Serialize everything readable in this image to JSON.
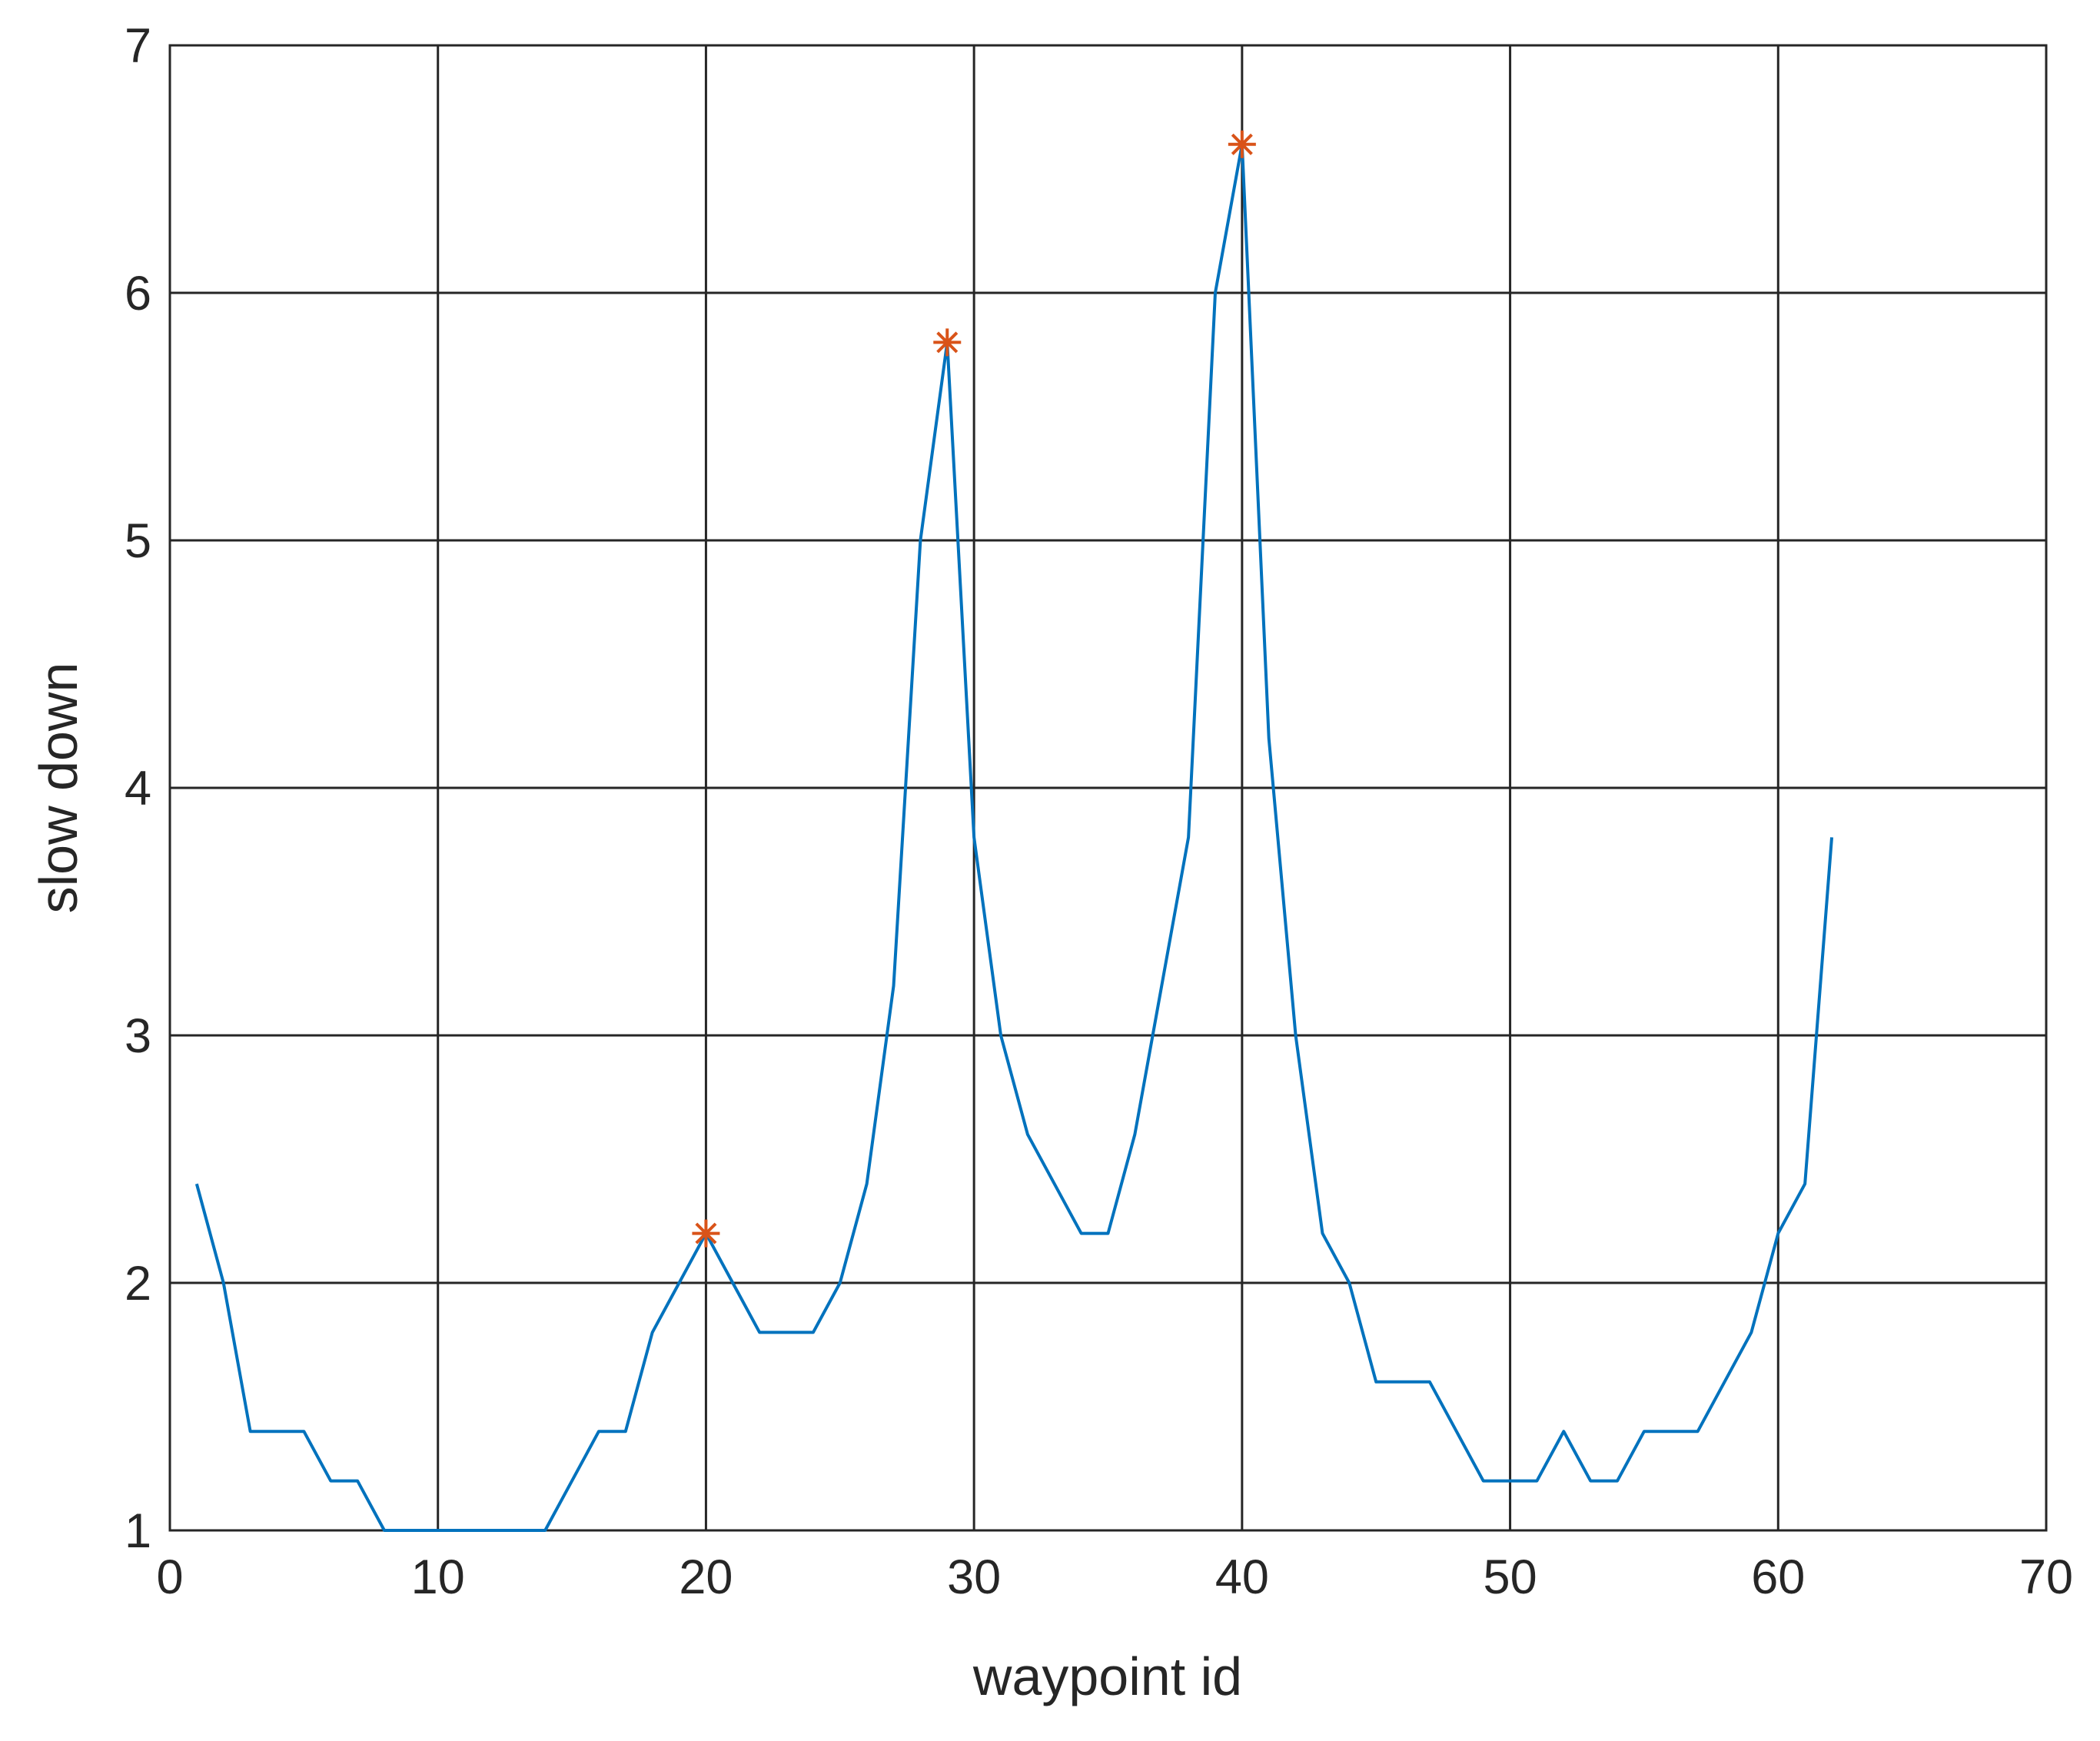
{
  "chart_data": {
    "type": "line",
    "x_label": "waypoint id",
    "y_label": "slow down",
    "xlim": [
      0,
      70
    ],
    "xticks": [
      0,
      10,
      20,
      30,
      40,
      50,
      60,
      70
    ],
    "ylim": [
      1,
      7
    ],
    "yticks": [
      1,
      2,
      3,
      4,
      5,
      6,
      7
    ],
    "grid": true,
    "series": [
      {
        "color": "#0072bd",
        "marker": "none",
        "x": [
          1,
          2,
          3,
          4,
          5,
          6,
          7,
          8,
          9,
          10,
          11,
          12,
          13,
          14,
          15,
          16,
          17,
          18,
          19,
          20,
          21,
          22,
          23,
          24,
          25,
          26,
          27,
          28,
          29,
          30,
          31,
          32,
          33,
          34,
          35,
          36,
          37,
          38,
          39,
          40,
          41,
          42,
          43,
          44,
          45,
          46,
          47,
          48,
          49,
          50,
          51,
          52,
          53,
          54,
          55,
          56,
          57,
          58,
          59,
          60,
          61,
          62
        ],
        "values": [
          2.4,
          2.0,
          1.4,
          1.4,
          1.4,
          1.2,
          1.2,
          1.0,
          1.0,
          1.0,
          1.0,
          1.0,
          1.0,
          1.0,
          1.2,
          1.4,
          1.4,
          1.8,
          2.0,
          2.2,
          2.0,
          1.8,
          1.8,
          1.8,
          2.0,
          2.4,
          3.2,
          5.0,
          5.8,
          3.8,
          3.0,
          2.6,
          2.4,
          2.2,
          2.2,
          2.6,
          3.2,
          3.8,
          6.0,
          6.6,
          4.2,
          3.0,
          2.2,
          2.0,
          1.6,
          1.6,
          1.6,
          1.4,
          1.2,
          1.2,
          1.2,
          1.4,
          1.2,
          1.2,
          1.4,
          1.4,
          1.4,
          1.6,
          1.8,
          2.2,
          2.4,
          3.8
        ]
      },
      {
        "color": "#d95319",
        "marker": "asterisk",
        "x": [
          20,
          29,
          40
        ],
        "values": [
          2.2,
          5.8,
          6.6
        ]
      }
    ]
  }
}
